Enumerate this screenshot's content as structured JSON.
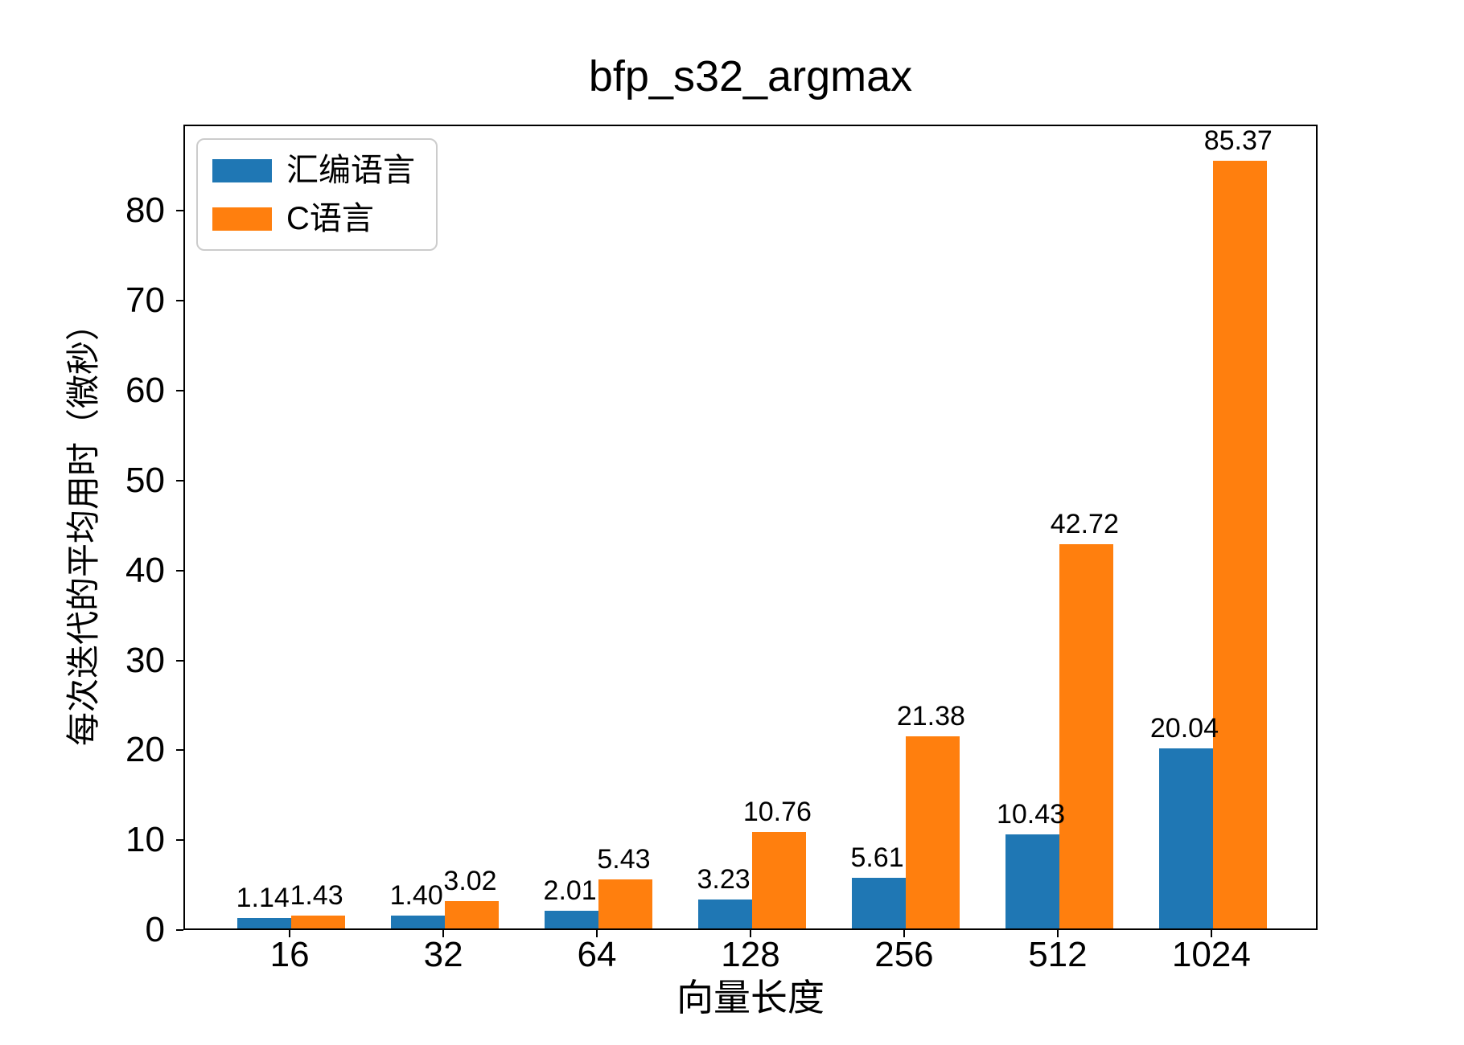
{
  "title": "bfp_s32_argmax",
  "chart_data": {
    "type": "bar",
    "title": "bfp_s32_argmax",
    "xlabel": "向量长度",
    "ylabel": "每次迭代的平均用时（微秒）",
    "categories": [
      "16",
      "32",
      "64",
      "128",
      "256",
      "512",
      "1024"
    ],
    "series": [
      {
        "name": "汇编语言",
        "color": "#1f77b4",
        "values": [
          1.14,
          1.4,
          2.01,
          3.23,
          5.61,
          10.43,
          20.04
        ],
        "labels": [
          "1.14",
          "1.40",
          "2.01",
          "3.23",
          "5.61",
          "10.43",
          "20.04"
        ]
      },
      {
        "name": "C语言",
        "color": "#ff7f0e",
        "values": [
          1.43,
          3.02,
          5.43,
          10.76,
          21.38,
          42.72,
          85.37
        ],
        "labels": [
          "1.43",
          "3.02",
          "5.43",
          "10.76",
          "21.38",
          "42.72",
          "85.37"
        ]
      }
    ],
    "ylim": [
      0,
      89.6
    ],
    "yticks": [
      0,
      10,
      20,
      30,
      40,
      50,
      60,
      70,
      80
    ],
    "grid": false,
    "legend_position": "upper left",
    "bar_value_labels": true,
    "frame_color": "#000000",
    "background_color": "#ffffff"
  }
}
